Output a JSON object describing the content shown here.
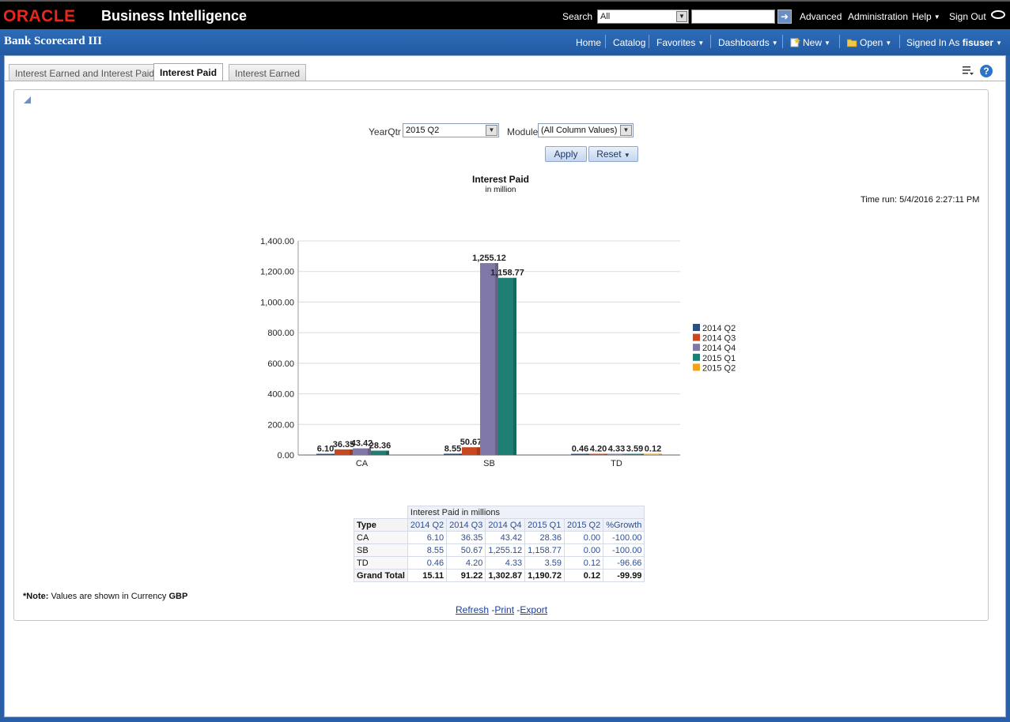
{
  "topbar": {
    "logo": "ORACLE",
    "product": "Business Intelligence",
    "search_label": "Search",
    "search_scope": "All",
    "search_value": "",
    "links": [
      "Advanced",
      "Administration",
      "Help",
      "Sign Out"
    ]
  },
  "header": {
    "dashboard_title": "Bank Scorecard III",
    "nav": {
      "home": "Home",
      "catalog": "Catalog",
      "favorites": "Favorites",
      "dashboards": "Dashboards",
      "new": "New",
      "open": "Open",
      "signed_in_as": "Signed In As",
      "user": "fisuser"
    }
  },
  "tabs": [
    {
      "label": "Interest Earned and Interest Paid",
      "active": false
    },
    {
      "label": "Interest Paid",
      "active": true
    },
    {
      "label": "Interest Earned",
      "active": false
    }
  ],
  "prompts": {
    "yearqtr_label": "YearQtr",
    "yearqtr_value": "2015 Q2",
    "module_label": "Module",
    "module_value": "(All Column Values)",
    "apply": "Apply",
    "reset": "Reset"
  },
  "report": {
    "time_run": "Time run: 5/4/2016 2:27:11 PM",
    "note_prefix": "*Note:",
    "note_text": " Values are shown in Currency ",
    "note_currency": "GBP",
    "refresh": "Refresh",
    "print": "Print",
    "export": "Export"
  },
  "chart_data": {
    "type": "bar",
    "title": "Interest Paid",
    "subtitle": "in million",
    "categories": [
      "CA",
      "SB",
      "TD"
    ],
    "series": [
      {
        "name": "2014 Q2",
        "values": [
          6.1,
          8.55,
          0.46
        ],
        "labels": [
          "6.10",
          "8.55",
          "0.46"
        ],
        "color": "#2e4f7e"
      },
      {
        "name": "2014 Q3",
        "values": [
          36.35,
          50.67,
          4.2
        ],
        "labels": [
          "36.35",
          "50.67",
          "4.20"
        ],
        "color": "#c8481f"
      },
      {
        "name": "2014 Q4",
        "values": [
          43.42,
          1255.12,
          4.33
        ],
        "labels": [
          "43.42",
          "1,255.12",
          "4.33"
        ],
        "color": "#8078a6"
      },
      {
        "name": "2015 Q1",
        "values": [
          28.36,
          1158.77,
          3.59
        ],
        "labels": [
          "28.36",
          "1,158.77",
          "3.59"
        ],
        "color": "#1e7e72"
      },
      {
        "name": "2015 Q2",
        "values": [
          0.0,
          0.0,
          0.12
        ],
        "labels": [
          "",
          "",
          "0.12"
        ],
        "color": "#f2a21e"
      }
    ],
    "ylim": [
      0,
      1400
    ],
    "yticks": [
      "0.00",
      "200.00",
      "400.00",
      "600.00",
      "800.00",
      "1,000.00",
      "1,200.00",
      "1,400.00"
    ],
    "grid": true,
    "legend": "right"
  },
  "table": {
    "caption": "Interest Paid in millions",
    "columns": [
      "Type",
      "2014 Q2",
      "2014 Q3",
      "2014 Q4",
      "2015 Q1",
      "2015 Q2",
      "%Growth"
    ],
    "rows": [
      [
        "CA",
        "6.10",
        "36.35",
        "43.42",
        "28.36",
        "0.00",
        "-100.00"
      ],
      [
        "SB",
        "8.55",
        "50.67",
        "1,255.12",
        "1,158.77",
        "0.00",
        "-100.00"
      ],
      [
        "TD",
        "0.46",
        "4.20",
        "4.33",
        "3.59",
        "0.12",
        "-96.66"
      ]
    ],
    "total": [
      "Grand Total",
      "15.11",
      "91.22",
      "1,302.87",
      "1,190.72",
      "0.12",
      "-99.99"
    ]
  }
}
